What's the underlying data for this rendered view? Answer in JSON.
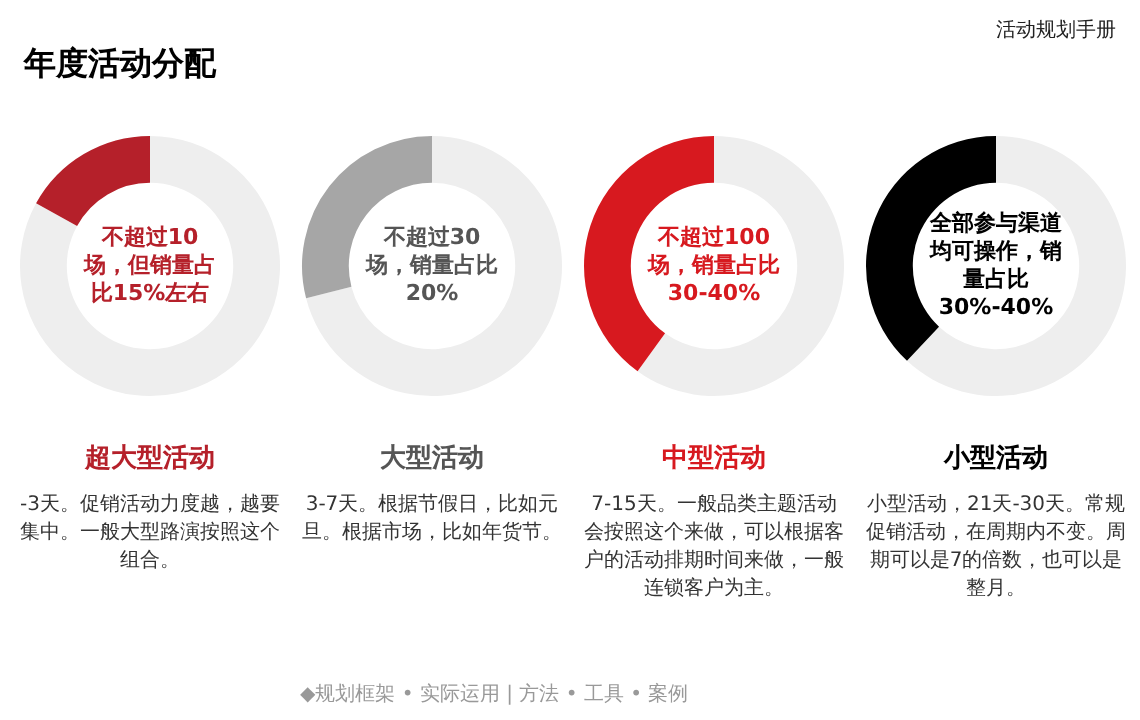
{
  "chart_data": [
    {
      "type": "donut",
      "title": "超大型活动",
      "categories": [
        null,
        null
      ],
      "values": [
        83,
        17
      ],
      "colors": [
        "#eeeeee",
        "#b5202a"
      ],
      "legend": false,
      "annotations": [
        "不超过10场，但销量占比15%左右",
        "-3天。促销活动力度越，越要集中。一般大型路演按照这个组合。"
      ]
    },
    {
      "type": "donut",
      "title": "大型活动",
      "categories": [
        null,
        null
      ],
      "values": [
        71,
        29
      ],
      "colors": [
        "#eeeeee",
        "#a6a6a6"
      ],
      "legend": false,
      "annotations": [
        "不超过30场，销量占比20%",
        "3-7天。根据节假日，比如元旦。根据市场，比如年货节。"
      ]
    },
    {
      "type": "donut",
      "title": "中型活动",
      "categories": [
        null,
        null
      ],
      "values": [
        60,
        40
      ],
      "colors": [
        "#eeeeee",
        "#d7191f"
      ],
      "legend": false,
      "annotations": [
        "不超过100场，销量占比30-40%",
        "7-15天。一般品类主题活动会按照这个来做，可以根据客户的活动排期时间来做，一般连锁客户为主。"
      ]
    },
    {
      "type": "donut",
      "title": "小型活动",
      "categories": [
        null,
        null
      ],
      "values": [
        62,
        38
      ],
      "colors": [
        "#eeeeee",
        "#000000"
      ],
      "legend": false,
      "annotations": [
        "全部参与渠道均可操作，销量占比30%-40%",
        "小型活动，21天-30天。常规促销活动，在周期内不变。周期可以是7的倍数，也可以是整月。"
      ]
    },
    {
      "type": "other",
      "title": "年度活动分配",
      "annotations": [
        "活动规划手册",
        "◆规划框架 • 实际运用 | 方法 • 工具 • 案例"
      ]
    }
  ]
}
